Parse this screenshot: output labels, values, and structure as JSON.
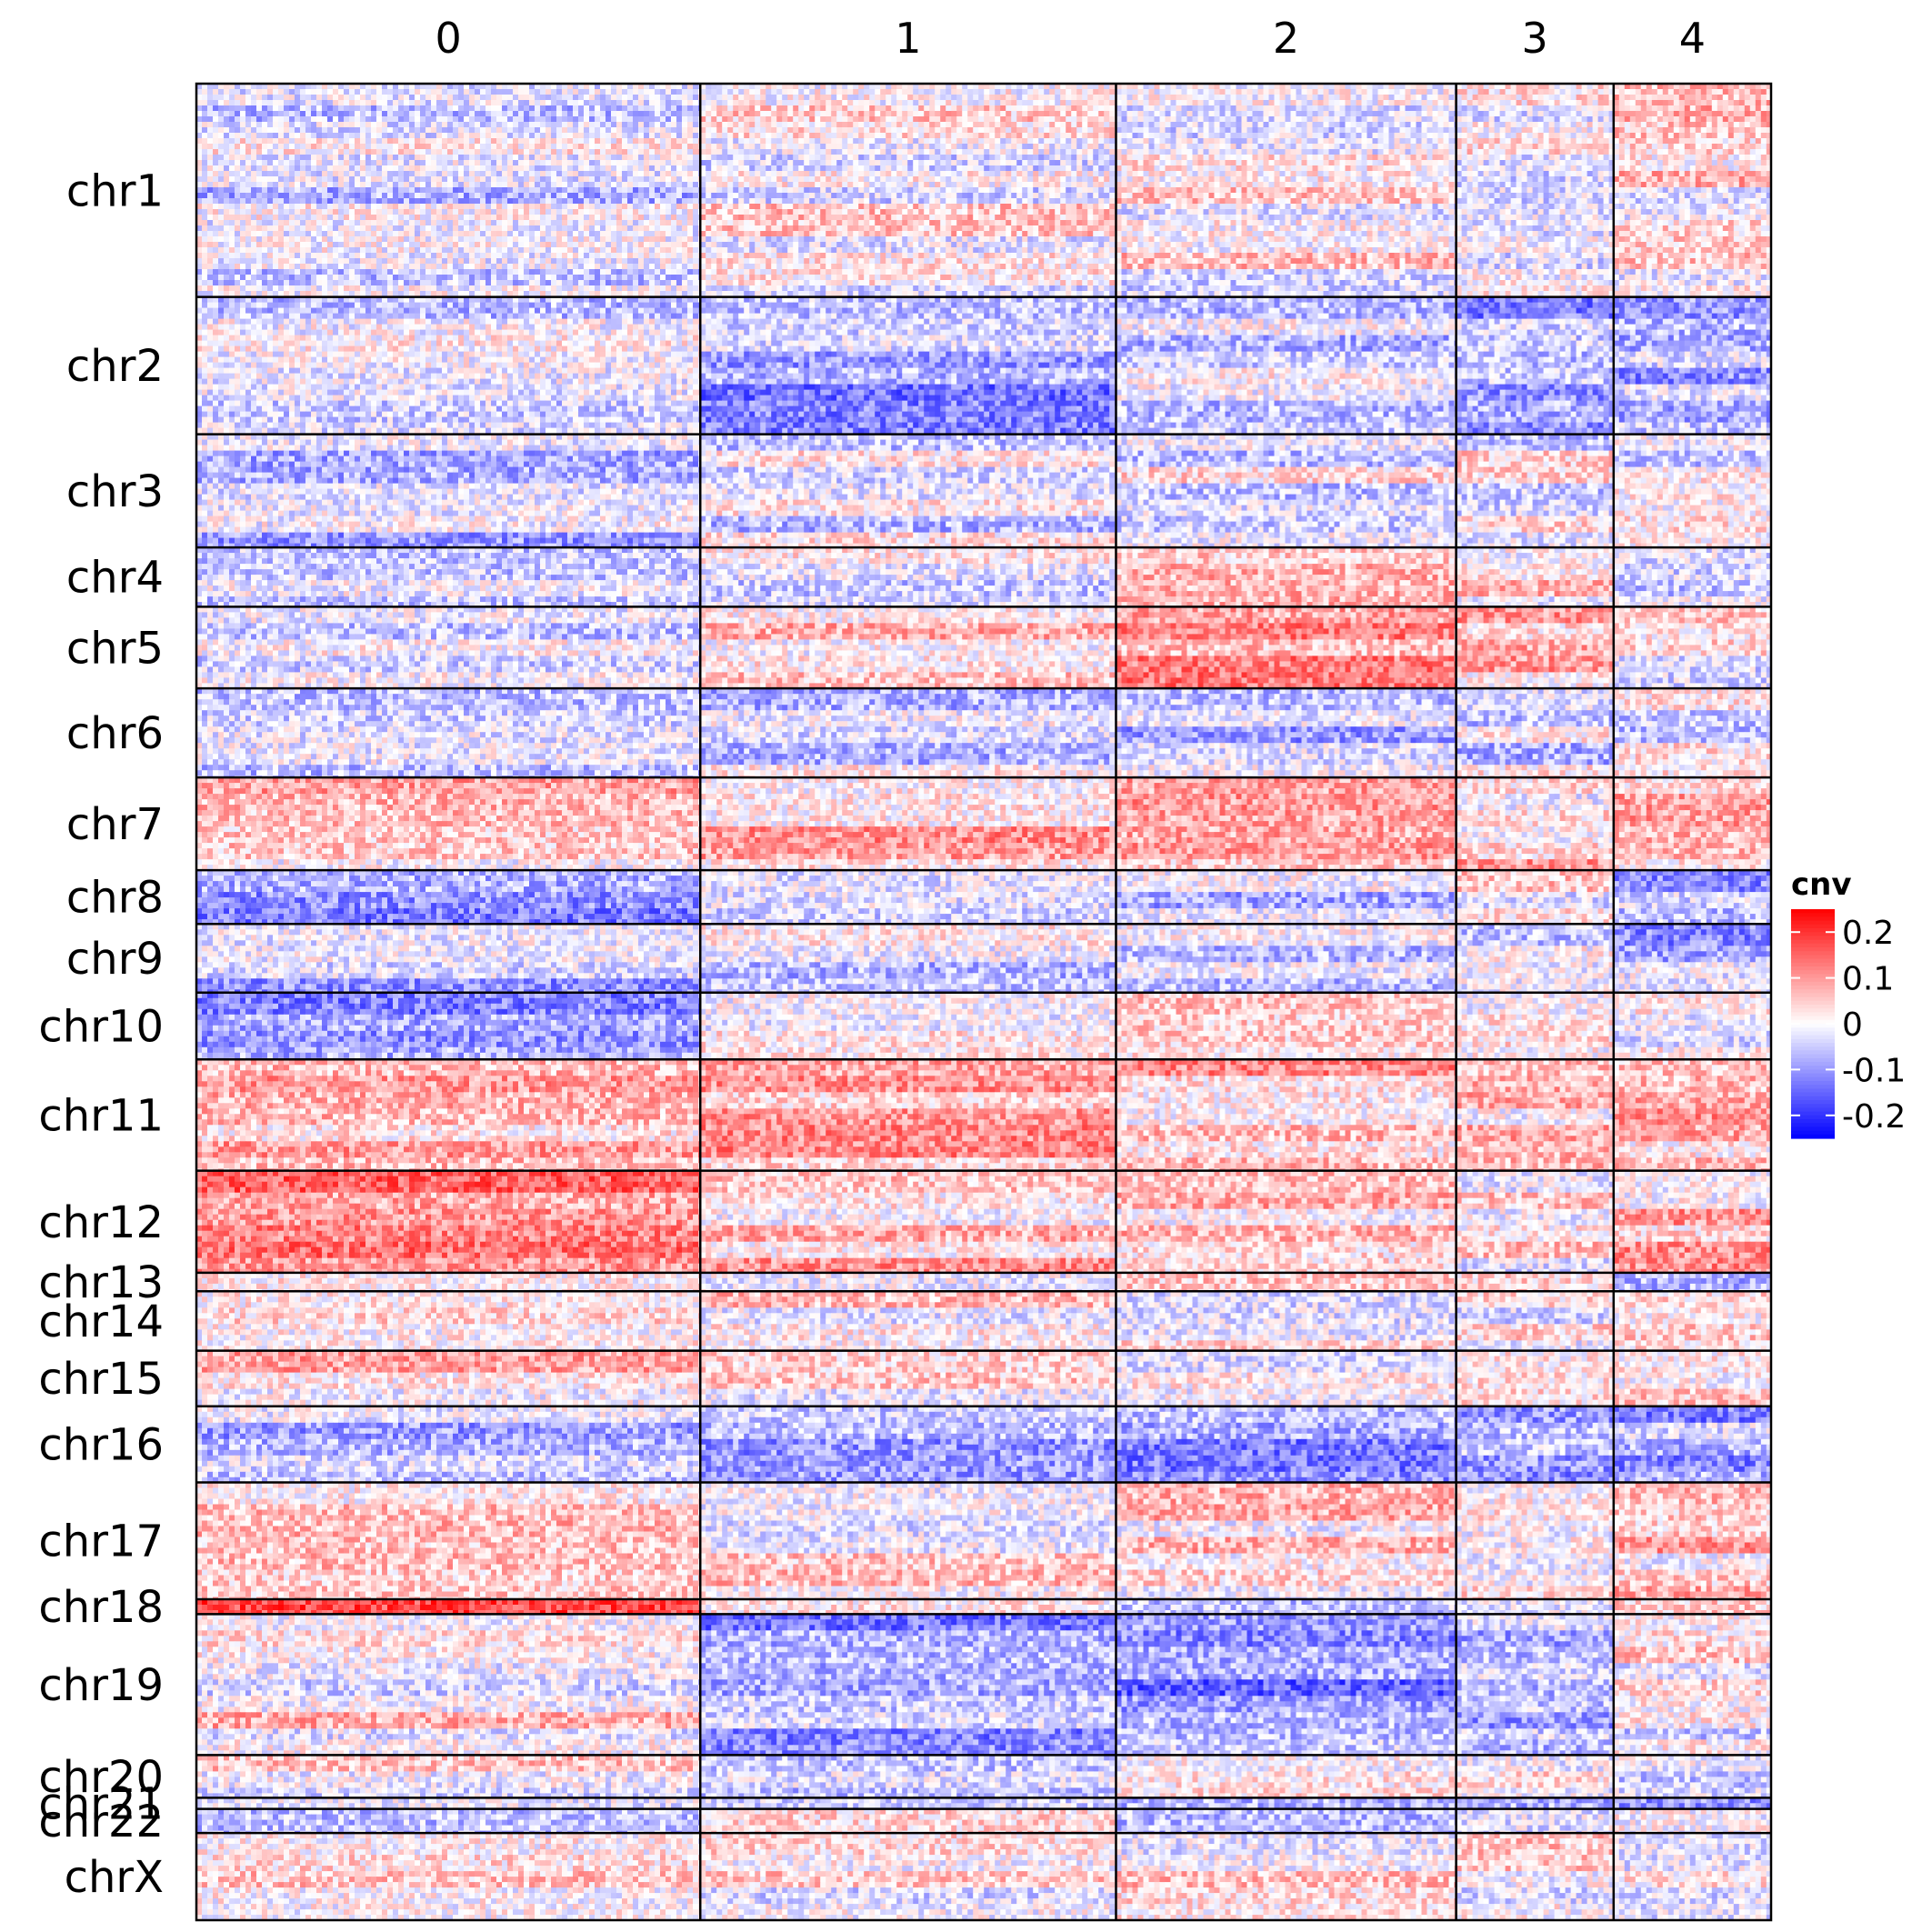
{
  "chart_data": {
    "type": "heatmap",
    "title": "",
    "xlabel": "",
    "ylabel": "",
    "columns": [
      "0",
      "1",
      "2",
      "3",
      "4"
    ],
    "column_weights": [
      0.32,
      0.264,
      0.216,
      0.1,
      0.1
    ],
    "rows": [
      "chr1",
      "chr2",
      "chr3",
      "chr4",
      "chr5",
      "chr6",
      "chr7",
      "chr8",
      "chr9",
      "chr10",
      "chr11",
      "chr12",
      "chr13",
      "chr14",
      "chr15",
      "chr16",
      "chr17",
      "chr18",
      "chr19",
      "chr20",
      "chr21",
      "chr22",
      "chrX"
    ],
    "row_weights": [
      0.115,
      0.074,
      0.061,
      0.032,
      0.044,
      0.048,
      0.05,
      0.029,
      0.037,
      0.036,
      0.06,
      0.055,
      0.01,
      0.032,
      0.03,
      0.041,
      0.063,
      0.008,
      0.076,
      0.023,
      0.006,
      0.013,
      0.047
    ],
    "value_range": [
      -0.25,
      0.25
    ],
    "cluster_means": [
      [
        -0.04,
        0.0,
        0.02,
        0.0,
        0.02
      ],
      [
        -0.03,
        -0.08,
        -0.04,
        -0.07,
        -0.08
      ],
      [
        -0.06,
        -0.03,
        -0.02,
        -0.01,
        -0.03
      ],
      [
        -0.02,
        -0.01,
        0.03,
        0.02,
        -0.03
      ],
      [
        -0.02,
        0.06,
        0.08,
        0.06,
        0.02
      ],
      [
        -0.02,
        -0.02,
        -0.04,
        -0.03,
        -0.02
      ],
      [
        0.04,
        0.06,
        0.06,
        0.05,
        0.05
      ],
      [
        -0.07,
        -0.05,
        -0.05,
        0.0,
        -0.06
      ],
      [
        -0.06,
        -0.04,
        -0.04,
        -0.03,
        -0.06
      ],
      [
        -0.07,
        -0.02,
        0.0,
        -0.02,
        -0.04
      ],
      [
        0.05,
        0.06,
        0.06,
        0.05,
        0.06
      ],
      [
        0.1,
        0.06,
        0.06,
        0.03,
        0.06
      ],
      [
        0.0,
        0.0,
        0.01,
        0.0,
        -0.02
      ],
      [
        0.0,
        0.02,
        0.02,
        0.01,
        0.0
      ],
      [
        0.04,
        0.02,
        0.03,
        0.02,
        0.01
      ],
      [
        -0.05,
        -0.08,
        -0.1,
        -0.07,
        -0.07
      ],
      [
        0.07,
        0.01,
        0.03,
        0.02,
        0.05
      ],
      [
        0.12,
        -0.02,
        -0.02,
        -0.02,
        0.0
      ],
      [
        0.02,
        -0.08,
        -0.1,
        -0.08,
        0.0
      ],
      [
        0.0,
        -0.02,
        -0.01,
        -0.02,
        -0.02
      ],
      [
        -0.05,
        -0.05,
        -0.05,
        -0.05,
        -0.06
      ],
      [
        -0.02,
        -0.02,
        -0.03,
        -0.02,
        -0.05
      ],
      [
        0.02,
        0.01,
        0.03,
        0.01,
        0.0
      ]
    ],
    "legend": {
      "title": "cnv",
      "ticks": [
        "0.2",
        "0.1",
        "0",
        "-0.1",
        "-0.2"
      ],
      "tick_values": [
        0.2,
        0.1,
        0,
        -0.1,
        -0.2
      ],
      "colors": {
        "low": "#0000ff",
        "mid": "#ffffff",
        "high": "#ff0000"
      },
      "position": "right"
    },
    "grid": false
  }
}
